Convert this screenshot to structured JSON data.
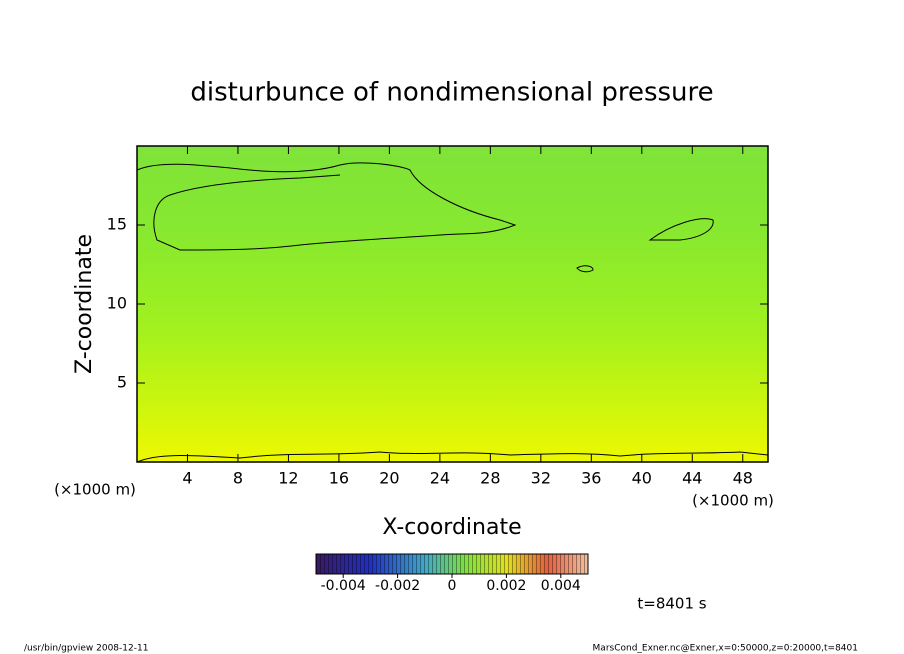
{
  "chart_data": {
    "type": "contour",
    "title": "disturbunce of nondimensional pressure",
    "xlabel": "X-coordinate",
    "ylabel": "Z-coordinate",
    "x_unit": "(×1000 m)",
    "x_unit_right": "(×1000 m)",
    "xlim": [
      0,
      50
    ],
    "xticks": [
      4,
      8,
      12,
      16,
      20,
      24,
      28,
      32,
      36,
      40,
      44,
      48
    ],
    "ylim": [
      0,
      20
    ],
    "yticks": [
      5,
      10,
      15
    ],
    "colorbar": {
      "clim": [
        -0.005,
        0.005
      ],
      "ticks": [
        -0.004,
        -0.002,
        0,
        0.002,
        0.004
      ]
    },
    "time_label": "t=8401 s",
    "footer_left": "/usr/bin/gpview   2008-12-11",
    "footer_right": "MarsCond_Exner.nc@Exner,x=0:50000,z=0:20000,t=8401"
  }
}
